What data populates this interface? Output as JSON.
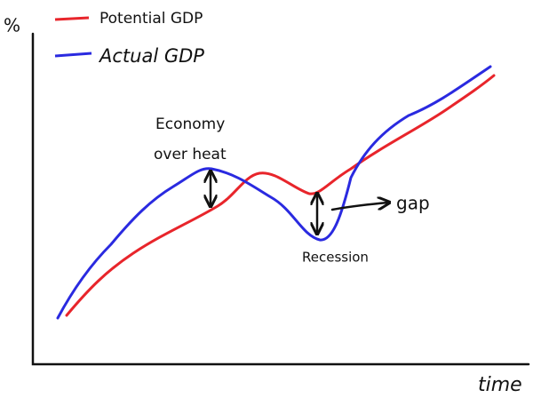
{
  "legend": [
    {
      "label": "Potential GDP"
    },
    {
      "label": "Actual GDP"
    }
  ],
  "axes": {
    "y_label": "%",
    "x_label": "time"
  },
  "annotations": {
    "overheat": [
      "Economy",
      "over heat"
    ],
    "recession": "Recession",
    "gap": "gap"
  }
}
